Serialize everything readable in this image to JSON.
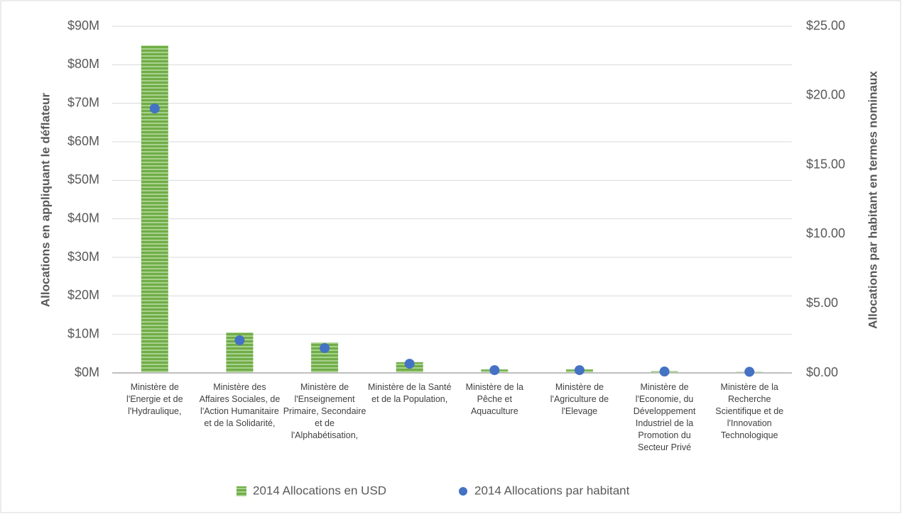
{
  "chart_data": {
    "type": "bar",
    "categories": [
      "Ministère de l'Energie et de l'Hydraulique,",
      "Ministère des Affaires Sociales, de l'Action Humanitaire et de la Solidarité,",
      "Ministère de l'Enseignement Primaire, Secondaire et de l'Alphabétisation,",
      "Ministère de la Santé et de la Population,",
      "Ministère de la Pêche et Aquaculture",
      "Ministère de l'Agriculture de l'Elevage",
      "Ministère de l'Economie, du Développement Industriel de la Promotion du Secteur Privé",
      "Ministère de la Recherche Scientifique et de l'Innovation Technologique"
    ],
    "series": [
      {
        "name": "2014 Allocations en USD",
        "type": "bar",
        "color": "#70ad47",
        "values": [
          85000000,
          10500000,
          7900000,
          2800000,
          900000,
          900000,
          500000,
          300000
        ]
      },
      {
        "name": "2014 Allocations par habitant",
        "type": "scatter",
        "color": "#4472c4",
        "axis": "y2",
        "values": [
          19.07,
          2.35,
          1.79,
          0.66,
          0.2,
          0.2,
          0.1,
          0.08
        ]
      }
    ],
    "ylabel": "Allocations en appliquant le déflateur",
    "y2label": "Allocations par habitant en termes nominaux",
    "ylim": [
      0,
      90000000
    ],
    "yticks": [
      {
        "value": 0,
        "label": "$0M"
      },
      {
        "value": 10000000,
        "label": "$10M"
      },
      {
        "value": 20000000,
        "label": "$20M"
      },
      {
        "value": 30000000,
        "label": "$30M"
      },
      {
        "value": 40000000,
        "label": "$40M"
      },
      {
        "value": 50000000,
        "label": "$50M"
      },
      {
        "value": 60000000,
        "label": "$60M"
      },
      {
        "value": 70000000,
        "label": "$70M"
      },
      {
        "value": 80000000,
        "label": "$80M"
      },
      {
        "value": 90000000,
        "label": "$90M"
      }
    ],
    "y2lim": [
      0,
      25
    ],
    "y2ticks": [
      {
        "value": 0,
        "label": "$0.00"
      },
      {
        "value": 5,
        "label": "$5.00"
      },
      {
        "value": 10,
        "label": "$10.00"
      },
      {
        "value": 15,
        "label": "$15.00"
      },
      {
        "value": 20,
        "label": "$20.00"
      },
      {
        "value": 25,
        "label": "$25.00"
      }
    ],
    "grid": true,
    "legend": "bottom"
  }
}
